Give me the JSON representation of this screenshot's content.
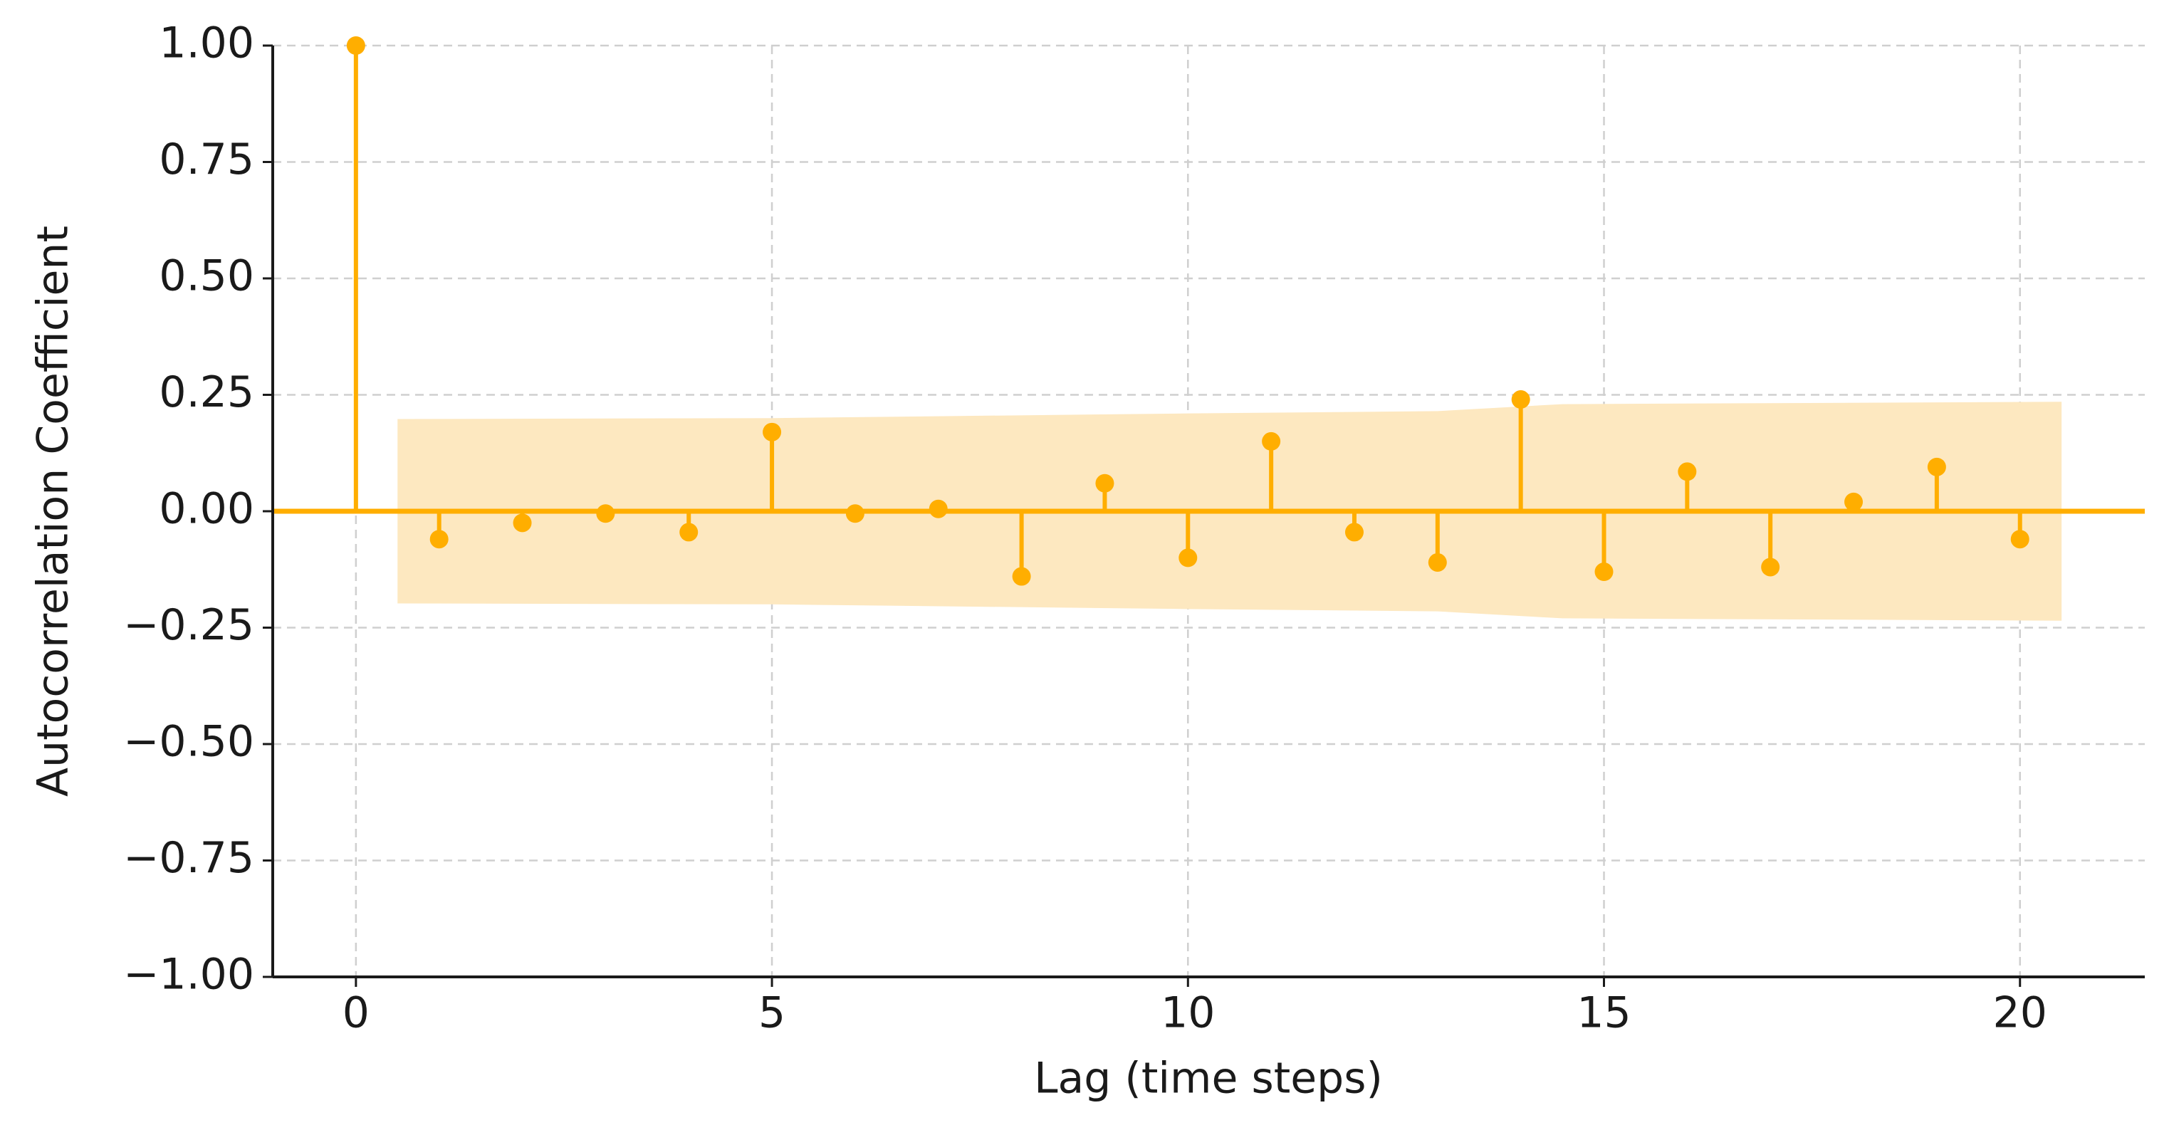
{
  "chart_data": {
    "type": "stem",
    "x_label": "Lag (time steps)",
    "y_label": "Autocorrelation Coefficient",
    "x": [
      0,
      1,
      2,
      3,
      4,
      5,
      6,
      7,
      8,
      9,
      10,
      11,
      12,
      13,
      14,
      15,
      16,
      17,
      18,
      19,
      20
    ],
    "values": [
      1.0,
      -0.06,
      -0.025,
      -0.005,
      -0.045,
      0.17,
      -0.005,
      0.005,
      -0.14,
      0.06,
      -0.1,
      0.15,
      -0.045,
      -0.11,
      0.24,
      -0.13,
      0.085,
      -0.12,
      0.02,
      0.095,
      -0.06
    ],
    "color": "#ffae00",
    "band": {
      "x": [
        0.5,
        5,
        10,
        13,
        14.5,
        20.5
      ],
      "upper": [
        0.198,
        0.2,
        0.21,
        0.215,
        0.23,
        0.235
      ],
      "lower": [
        -0.198,
        -0.2,
        -0.21,
        -0.215,
        -0.23,
        -0.235
      ],
      "color": "#fde8c0"
    },
    "xlim": [
      -1,
      21.5
    ],
    "ylim": [
      -1,
      1
    ],
    "xticks": [
      0,
      5,
      10,
      15,
      20
    ],
    "yticks": [
      {
        "value": -1,
        "label": "−1.00"
      },
      {
        "value": -0.75,
        "label": "−0.75"
      },
      {
        "value": -0.5,
        "label": "−0.50"
      },
      {
        "value": -0.25,
        "label": "−0.25"
      },
      {
        "value": 0,
        "label": "0.00"
      },
      {
        "value": 0.25,
        "label": "0.25"
      },
      {
        "value": 0.5,
        "label": "0.50"
      },
      {
        "value": 0.75,
        "label": "0.75"
      },
      {
        "value": 1,
        "label": "1.00"
      }
    ],
    "grid": true
  }
}
